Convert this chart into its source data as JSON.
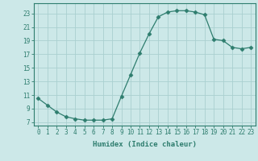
{
  "x": [
    0,
    1,
    2,
    3,
    4,
    5,
    6,
    7,
    8,
    9,
    10,
    11,
    12,
    13,
    14,
    15,
    16,
    17,
    18,
    19,
    20,
    21,
    22,
    23
  ],
  "y": [
    10.5,
    9.5,
    8.5,
    7.8,
    7.5,
    7.3,
    7.3,
    7.3,
    7.5,
    10.8,
    14.0,
    17.2,
    20.0,
    22.5,
    23.2,
    23.4,
    23.4,
    23.2,
    22.8,
    19.2,
    19.0,
    18.0,
    17.8,
    18.0
  ],
  "line_color": "#2e7d6e",
  "marker": "D",
  "marker_size": 2.5,
  "bg_color": "#cce8e8",
  "grid_color": "#aad0d0",
  "xlabel": "Humidex (Indice chaleur)",
  "xlim": [
    -0.5,
    23.5
  ],
  "ylim": [
    6.5,
    24.5
  ],
  "yticks": [
    7,
    9,
    11,
    13,
    15,
    17,
    19,
    21,
    23
  ],
  "xticks": [
    0,
    1,
    2,
    3,
    4,
    5,
    6,
    7,
    8,
    9,
    10,
    11,
    12,
    13,
    14,
    15,
    16,
    17,
    18,
    19,
    20,
    21,
    22,
    23
  ],
  "label_fontsize": 6.5,
  "tick_fontsize": 5.5
}
